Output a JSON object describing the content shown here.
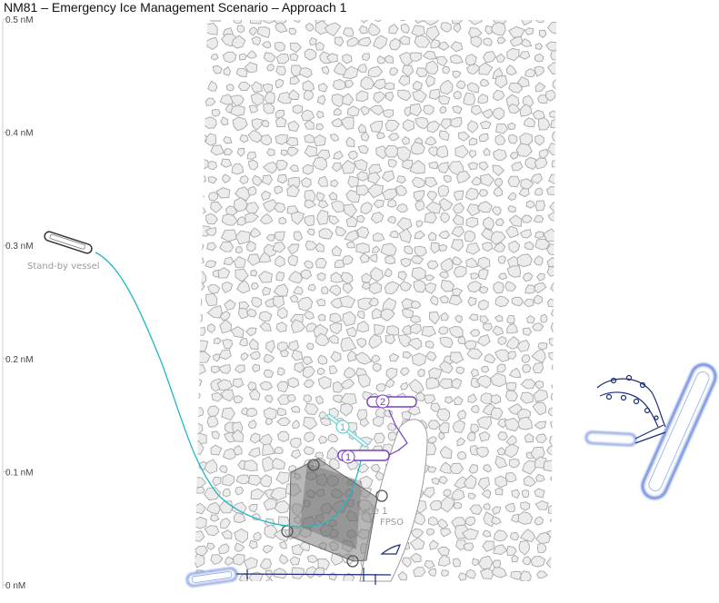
{
  "title": "NM81 – Emergency Ice Management Scenario – Approach 1",
  "axis": {
    "ticks": [
      {
        "value": 0.5,
        "label": "0.5 nM"
      },
      {
        "value": 0.4,
        "label": "0.4 nM"
      },
      {
        "value": 0.3,
        "label": "0.3 nM"
      },
      {
        "value": 0.2,
        "label": "0.2 nM"
      },
      {
        "value": 0.1,
        "label": "0.1 nM"
      },
      {
        "value": 0.0,
        "label": "0 nM"
      }
    ]
  },
  "labels": {
    "standby_vessel": "Stand-by vessel",
    "zone": "Zone 1",
    "fpso": "FPSO"
  },
  "markers": [
    {
      "label": "1",
      "color": "#41c8cf"
    },
    {
      "label": "2",
      "color": "#7a3fc4"
    },
    {
      "label": "1",
      "color": "#7a3fc4"
    }
  ],
  "colors": {
    "ice_fill": "#ececec",
    "ice_stroke": "#a8a8a8",
    "standby_track": "#20b9c2",
    "vessel_blue": "#3a6fd8",
    "navy": "#1d2e7a",
    "purple": "#7a3fc4",
    "cyan": "#41c8cf",
    "zone_fill": "#7d7d7d"
  }
}
